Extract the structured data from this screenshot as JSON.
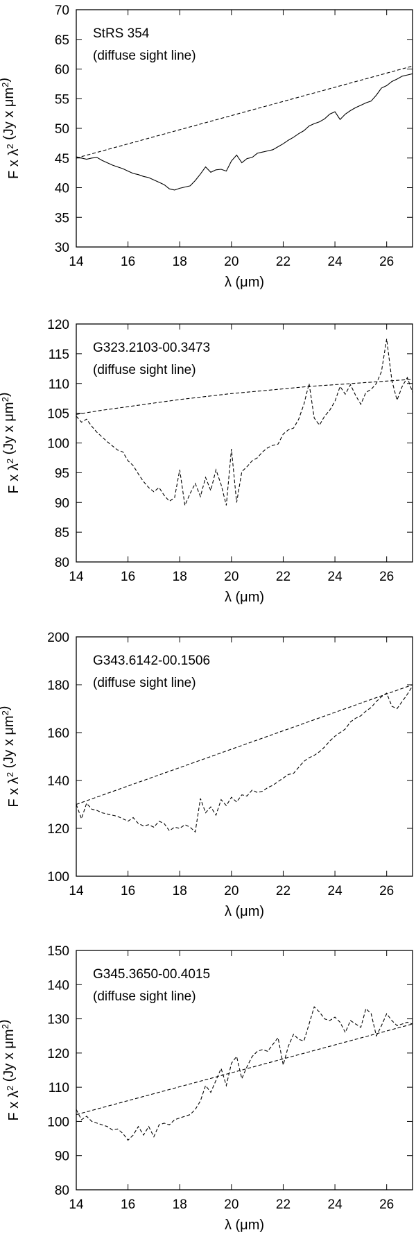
{
  "chart_data": [
    {
      "type": "line",
      "xlabel": "λ (μm)",
      "ylabel": "F x λ2 (Jy x μm2)",
      "xlim": [
        14,
        27
      ],
      "ylim": [
        30,
        70
      ],
      "xticks": [
        14,
        16,
        18,
        20,
        22,
        24,
        26
      ],
      "yticks": [
        30,
        35,
        40,
        45,
        50,
        55,
        60,
        65,
        70
      ],
      "annotations": [
        "StRS 354",
        "(diffuse sight line)"
      ],
      "grid": false,
      "series": [
        {
          "style": "solid",
          "x": [
            14.0,
            14.2,
            14.4,
            14.6,
            14.8,
            15.0,
            15.2,
            15.4,
            15.6,
            15.8,
            16.0,
            16.2,
            16.4,
            16.6,
            16.8,
            17.0,
            17.2,
            17.4,
            17.6,
            17.8,
            18.0,
            18.2,
            18.4,
            18.6,
            18.8,
            19.0,
            19.2,
            19.4,
            19.6,
            19.8,
            20.0,
            20.2,
            20.4,
            20.6,
            20.8,
            21.0,
            21.2,
            21.4,
            21.6,
            21.8,
            22.0,
            22.2,
            22.4,
            22.6,
            22.8,
            23.0,
            23.2,
            23.4,
            23.6,
            23.8,
            24.0,
            24.2,
            24.4,
            24.6,
            24.8,
            25.0,
            25.2,
            25.4,
            25.6,
            25.8,
            26.0,
            26.2,
            26.4,
            26.6,
            26.8,
            27.0
          ],
          "y": [
            45.2,
            45.0,
            44.8,
            45.0,
            45.1,
            44.6,
            44.2,
            43.8,
            43.5,
            43.2,
            42.8,
            42.4,
            42.2,
            41.9,
            41.7,
            41.3,
            40.9,
            40.5,
            39.8,
            39.6,
            39.9,
            40.1,
            40.3,
            41.2,
            42.3,
            43.5,
            42.6,
            43.0,
            43.1,
            42.8,
            44.5,
            45.5,
            44.2,
            44.9,
            45.1,
            45.8,
            46.0,
            46.2,
            46.4,
            46.9,
            47.4,
            48.0,
            48.5,
            49.1,
            49.6,
            50.4,
            50.8,
            51.1,
            51.6,
            52.4,
            52.8,
            51.5,
            52.4,
            53.0,
            53.5,
            53.9,
            54.3,
            54.6,
            55.6,
            56.8,
            57.2,
            57.9,
            58.3,
            58.8,
            59.0,
            59.2
          ]
        },
        {
          "style": "dashed",
          "x": [
            14,
            27
          ],
          "y": [
            45,
            60.5
          ]
        }
      ]
    },
    {
      "type": "line",
      "xlabel": "λ (μm)",
      "ylabel": "F x λ2 (Jy x μm2)",
      "xlim": [
        14,
        27
      ],
      "ylim": [
        80,
        120
      ],
      "xticks": [
        14,
        16,
        18,
        20,
        22,
        24,
        26
      ],
      "yticks": [
        80,
        85,
        90,
        95,
        100,
        105,
        110,
        115,
        120
      ],
      "annotations": [
        "G323.2103-00.3473",
        "(diffuse sight line)"
      ],
      "grid": false,
      "series": [
        {
          "style": "dashed",
          "x": [
            14.0,
            14.2,
            14.4,
            14.6,
            14.8,
            15.0,
            15.2,
            15.4,
            15.6,
            15.8,
            16.0,
            16.2,
            16.4,
            16.6,
            16.8,
            17.0,
            17.2,
            17.4,
            17.6,
            17.8,
            18.0,
            18.2,
            18.4,
            18.6,
            18.8,
            19.0,
            19.2,
            19.4,
            19.6,
            19.8,
            20.0,
            20.2,
            20.4,
            20.6,
            20.8,
            21.0,
            21.2,
            21.4,
            21.6,
            21.8,
            22.0,
            22.2,
            22.4,
            22.6,
            22.8,
            23.0,
            23.2,
            23.4,
            23.6,
            23.8,
            24.0,
            24.2,
            24.4,
            24.6,
            24.8,
            25.0,
            25.2,
            25.4,
            25.6,
            25.8,
            26.0,
            26.2,
            26.4,
            26.6,
            26.8,
            27.0
          ],
          "y": [
            104.5,
            103.5,
            104.0,
            102.8,
            101.8,
            101.0,
            100.2,
            99.5,
            98.8,
            98.5,
            97.0,
            96.2,
            94.8,
            93.5,
            92.5,
            91.8,
            92.5,
            91.2,
            90.2,
            90.8,
            95.5,
            89.5,
            91.5,
            93.2,
            91.0,
            94.2,
            92.0,
            95.5,
            93.0,
            89.5,
            99.0,
            90.0,
            95.2,
            96.0,
            97.0,
            97.5,
            98.5,
            99.2,
            99.6,
            99.8,
            101.5,
            102.2,
            102.5,
            104.0,
            106.5,
            110.0,
            104.2,
            103.0,
            104.5,
            105.5,
            107.0,
            109.5,
            108.2,
            109.8,
            108.0,
            106.5,
            108.5,
            109.0,
            110.0,
            112.0,
            117.5,
            110.5,
            107.2,
            109.5,
            111.0,
            108.5
          ]
        },
        {
          "style": "dashed",
          "x": [
            14.0,
            15.0,
            16.0,
            17.0,
            18.0,
            19.0,
            20.0,
            21.0,
            22.0,
            23.0,
            24.0,
            25.0,
            26.0,
            27.0
          ],
          "y": [
            104.8,
            105.5,
            106.1,
            106.7,
            107.3,
            107.8,
            108.3,
            108.7,
            109.1,
            109.5,
            109.8,
            110.1,
            110.4,
            110.7
          ]
        }
      ]
    },
    {
      "type": "line",
      "xlabel": "λ (μm)",
      "ylabel": "F x λ2 (Jy x μm2)",
      "xlim": [
        14,
        27
      ],
      "ylim": [
        100,
        200
      ],
      "xticks": [
        14,
        16,
        18,
        20,
        22,
        24,
        26
      ],
      "yticks": [
        100,
        120,
        140,
        160,
        180,
        200
      ],
      "annotations": [
        "G343.6142-00.1506",
        "(diffuse sight line)"
      ],
      "grid": false,
      "series": [
        {
          "style": "dashed",
          "x": [
            14.0,
            14.2,
            14.4,
            14.6,
            14.8,
            15.0,
            15.2,
            15.4,
            15.6,
            15.8,
            16.0,
            16.2,
            16.4,
            16.6,
            16.8,
            17.0,
            17.2,
            17.4,
            17.6,
            17.8,
            18.0,
            18.2,
            18.4,
            18.6,
            18.8,
            19.0,
            19.2,
            19.4,
            19.6,
            19.8,
            20.0,
            20.2,
            20.4,
            20.6,
            20.8,
            21.0,
            21.2,
            21.4,
            21.6,
            21.8,
            22.0,
            22.2,
            22.4,
            22.6,
            22.8,
            23.0,
            23.2,
            23.4,
            23.6,
            23.8,
            24.0,
            24.2,
            24.4,
            24.6,
            24.8,
            25.0,
            25.2,
            25.4,
            25.6,
            25.8,
            26.0,
            26.2,
            26.4,
            26.6,
            26.8,
            27.0
          ],
          "y": [
            130.0,
            124.0,
            130.5,
            128.0,
            127.5,
            126.5,
            126.0,
            125.5,
            125.0,
            124.0,
            123.0,
            124.5,
            122.0,
            121.0,
            121.5,
            120.5,
            123.0,
            122.0,
            119.0,
            120.5,
            120.0,
            121.5,
            120.5,
            118.5,
            132.5,
            126.5,
            129.0,
            125.5,
            132.0,
            129.5,
            133.0,
            131.0,
            134.0,
            133.5,
            136.0,
            135.0,
            135.5,
            137.0,
            138.0,
            139.5,
            141.0,
            142.5,
            143.0,
            145.5,
            148.0,
            149.5,
            150.5,
            152.0,
            154.0,
            156.5,
            158.5,
            160.0,
            161.5,
            164.5,
            166.0,
            167.0,
            169.0,
            170.5,
            173.0,
            175.0,
            176.5,
            171.0,
            170.0,
            173.0,
            176.0,
            179.5
          ]
        },
        {
          "style": "dashed",
          "x": [
            14,
            27
          ],
          "y": [
            130,
            180
          ]
        }
      ]
    },
    {
      "type": "line",
      "xlabel": "λ (μm)",
      "ylabel": "F x λ2 (Jy x μm2)",
      "xlim": [
        14,
        27
      ],
      "ylim": [
        80,
        150
      ],
      "xticks": [
        14,
        16,
        18,
        20,
        22,
        24,
        26
      ],
      "yticks": [
        80,
        90,
        100,
        110,
        120,
        130,
        140,
        150
      ],
      "annotations": [
        "G345.3650-00.4015",
        "(diffuse sight line)"
      ],
      "grid": false,
      "series": [
        {
          "style": "dashed",
          "x": [
            14.0,
            14.2,
            14.4,
            14.6,
            14.8,
            15.0,
            15.2,
            15.4,
            15.6,
            15.8,
            16.0,
            16.2,
            16.4,
            16.6,
            16.8,
            17.0,
            17.2,
            17.4,
            17.6,
            17.8,
            18.0,
            18.2,
            18.4,
            18.6,
            18.8,
            19.0,
            19.2,
            19.4,
            19.6,
            19.8,
            20.0,
            20.2,
            20.4,
            20.6,
            20.8,
            21.0,
            21.2,
            21.4,
            21.6,
            21.8,
            22.0,
            22.2,
            22.4,
            22.6,
            22.8,
            23.0,
            23.2,
            23.4,
            23.6,
            23.8,
            24.0,
            24.2,
            24.4,
            24.6,
            24.8,
            25.0,
            25.2,
            25.4,
            25.6,
            25.8,
            26.0,
            26.2,
            26.4,
            26.6,
            26.8,
            27.0
          ],
          "y": [
            103.5,
            100.5,
            101.5,
            100.0,
            99.5,
            99.0,
            98.5,
            97.5,
            97.8,
            96.5,
            94.5,
            96.0,
            98.5,
            96.0,
            98.5,
            95.5,
            99.0,
            99.5,
            99.0,
            100.5,
            101.0,
            101.5,
            102.0,
            103.5,
            106.0,
            110.5,
            108.5,
            112.0,
            115.5,
            110.5,
            117.0,
            119.0,
            112.5,
            116.0,
            119.0,
            120.5,
            121.0,
            120.5,
            122.5,
            124.5,
            116.5,
            122.0,
            125.5,
            124.0,
            123.5,
            128.5,
            133.5,
            132.0,
            130.0,
            129.5,
            130.5,
            129.0,
            126.0,
            129.5,
            128.5,
            127.5,
            133.0,
            131.5,
            125.0,
            128.0,
            131.5,
            129.5,
            128.0,
            128.5,
            129.0,
            128.5
          ]
        },
        {
          "style": "dashed",
          "x": [
            14,
            27
          ],
          "y": [
            102,
            128.5
          ]
        }
      ]
    }
  ]
}
